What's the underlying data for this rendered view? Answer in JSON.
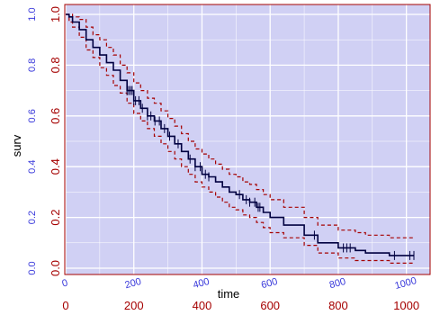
{
  "chart_data": {
    "type": "line",
    "title": "",
    "xlabel": "time",
    "ylabel": "surv",
    "xlim": [
      0,
      1030
    ],
    "ylim": [
      0,
      1.0
    ],
    "x_ticks": [
      0,
      200,
      400,
      600,
      800,
      1000
    ],
    "y_ticks": [
      0.0,
      0.2,
      0.4,
      0.6,
      0.8,
      1.0
    ],
    "x_tick_labels": [
      "0",
      "200",
      "400",
      "600",
      "800",
      "1000"
    ],
    "y_tick_labels": [
      "0.0",
      "0.2",
      "0.4",
      "0.6",
      "0.8",
      "1.0"
    ],
    "grid": true,
    "colors": {
      "panel_bg": "#d0d0f4",
      "grid": "#ffffff",
      "border": "#a50000",
      "estimate": "#000040",
      "ci": "#a50000",
      "inner_ticks": "#3a3adb",
      "outer_ticks": "#a50000"
    },
    "series": [
      {
        "style": "step-solid",
        "role": "estimate",
        "x": [
          0,
          10,
          20,
          40,
          60,
          80,
          100,
          120,
          140,
          160,
          180,
          200,
          220,
          240,
          260,
          280,
          300,
          320,
          340,
          360,
          380,
          400,
          420,
          440,
          460,
          480,
          500,
          520,
          540,
          560,
          580,
          600,
          640,
          700,
          740,
          800,
          850,
          880,
          950,
          1000,
          1022
        ],
        "y": [
          1.0,
          0.99,
          0.97,
          0.94,
          0.9,
          0.87,
          0.84,
          0.81,
          0.78,
          0.74,
          0.7,
          0.66,
          0.63,
          0.6,
          0.58,
          0.55,
          0.52,
          0.49,
          0.46,
          0.43,
          0.4,
          0.37,
          0.36,
          0.34,
          0.32,
          0.3,
          0.29,
          0.27,
          0.26,
          0.24,
          0.22,
          0.2,
          0.17,
          0.13,
          0.1,
          0.08,
          0.07,
          0.06,
          0.05,
          0.05,
          0.05
        ]
      },
      {
        "style": "step-dashed",
        "role": "upper-ci",
        "x": [
          0,
          10,
          20,
          40,
          60,
          80,
          100,
          120,
          140,
          160,
          180,
          200,
          220,
          240,
          260,
          280,
          300,
          320,
          340,
          360,
          380,
          400,
          420,
          440,
          460,
          480,
          500,
          520,
          540,
          560,
          580,
          600,
          640,
          700,
          740,
          800,
          850,
          880,
          950,
          1000,
          1022
        ],
        "y": [
          1.0,
          1.0,
          0.99,
          0.98,
          0.95,
          0.92,
          0.9,
          0.87,
          0.84,
          0.8,
          0.77,
          0.73,
          0.7,
          0.67,
          0.65,
          0.62,
          0.59,
          0.56,
          0.53,
          0.5,
          0.47,
          0.45,
          0.43,
          0.41,
          0.39,
          0.37,
          0.36,
          0.34,
          0.33,
          0.31,
          0.29,
          0.27,
          0.24,
          0.2,
          0.17,
          0.15,
          0.14,
          0.13,
          0.12,
          0.12,
          0.12
        ]
      },
      {
        "style": "step-dashed",
        "role": "lower-ci",
        "x": [
          0,
          10,
          20,
          40,
          60,
          80,
          100,
          120,
          140,
          160,
          180,
          200,
          220,
          240,
          260,
          280,
          300,
          320,
          340,
          360,
          380,
          400,
          420,
          440,
          460,
          480,
          500,
          520,
          540,
          560,
          580,
          600,
          640,
          700,
          740,
          800,
          850,
          880,
          950,
          1000,
          1022
        ],
        "y": [
          1.0,
          0.97,
          0.95,
          0.91,
          0.86,
          0.83,
          0.79,
          0.76,
          0.72,
          0.69,
          0.65,
          0.61,
          0.58,
          0.55,
          0.52,
          0.49,
          0.46,
          0.43,
          0.4,
          0.37,
          0.34,
          0.32,
          0.3,
          0.28,
          0.26,
          0.24,
          0.23,
          0.21,
          0.2,
          0.18,
          0.16,
          0.14,
          0.12,
          0.09,
          0.06,
          0.04,
          0.03,
          0.03,
          0.02,
          0.02,
          0.02
        ]
      }
    ],
    "censor_times": [
      180,
      185,
      190,
      195,
      200,
      205,
      215,
      225,
      240,
      250,
      262,
      275,
      290,
      305,
      330,
      365,
      380,
      395,
      410,
      420,
      510,
      530,
      540,
      555,
      565,
      570,
      730,
      815,
      825,
      835,
      965,
      1010,
      1022
    ]
  }
}
